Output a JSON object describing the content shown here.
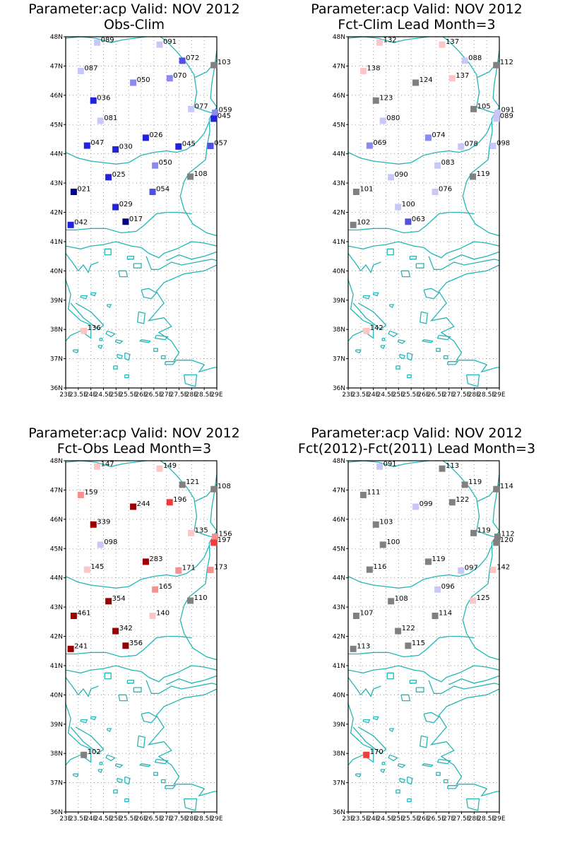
{
  "lat_ticks": [
    "48N",
    "47N",
    "46N",
    "45N",
    "44N",
    "43N",
    "42N",
    "41N",
    "40N",
    "39N",
    "38N",
    "37N",
    "36N"
  ],
  "lon_ticks": [
    "23E",
    "23.5E",
    "24E",
    "24.5E",
    "25E",
    "25.5E",
    "26E",
    "26.5E",
    "27E",
    "27.5E",
    "28E",
    "28.5E",
    "29E"
  ],
  "colors": {
    "coast": "#22b7b7",
    "frame": "#000000",
    "grid": "#888888",
    "neutral": "#808080",
    "blue_5": "#00008b",
    "blue_4": "#2222d8",
    "blue_3": "#5050e6",
    "blue_2": "#8a8aef",
    "blue_1": "#c8c8f8",
    "red_1": "#fcc6c6",
    "red_2": "#f59090",
    "red_3": "#ef3c3c",
    "red_4": "#990000"
  },
  "panels": [
    {
      "title_line1": "Parameter:acp Valid: NOV 2012",
      "title_line2": "Obs-Clim",
      "stations": [
        {
          "lat": 47.8,
          "lon": 24.25,
          "label": "089",
          "color": "blue_1"
        },
        {
          "lat": 47.73,
          "lon": 26.73,
          "label": "091",
          "color": "blue_1"
        },
        {
          "lat": 47.18,
          "lon": 27.63,
          "label": "072",
          "color": "blue_3"
        },
        {
          "lat": 47.03,
          "lon": 28.88,
          "label": "103",
          "color": "neutral"
        },
        {
          "lat": 46.83,
          "lon": 23.6,
          "label": "087",
          "color": "blue_1"
        },
        {
          "lat": 46.58,
          "lon": 27.13,
          "label": "070",
          "color": "blue_2"
        },
        {
          "lat": 46.43,
          "lon": 25.68,
          "label": "050",
          "color": "blue_2"
        },
        {
          "lat": 45.82,
          "lon": 24.1,
          "label": "036",
          "color": "blue_4"
        },
        {
          "lat": 45.53,
          "lon": 27.98,
          "label": "077",
          "color": "blue_1"
        },
        {
          "lat": 45.4,
          "lon": 28.93,
          "label": "059",
          "color": "blue_2"
        },
        {
          "lat": 45.2,
          "lon": 28.88,
          "label": "045",
          "color": "blue_4"
        },
        {
          "lat": 45.13,
          "lon": 24.38,
          "label": "081",
          "color": "blue_1"
        },
        {
          "lat": 44.55,
          "lon": 26.18,
          "label": "026",
          "color": "blue_4"
        },
        {
          "lat": 44.28,
          "lon": 23.85,
          "label": "047",
          "color": "blue_4"
        },
        {
          "lat": 44.25,
          "lon": 27.48,
          "label": "045",
          "color": "blue_4"
        },
        {
          "lat": 44.27,
          "lon": 28.75,
          "label": "057",
          "color": "blue_3"
        },
        {
          "lat": 44.15,
          "lon": 24.98,
          "label": "030",
          "color": "blue_4"
        },
        {
          "lat": 43.6,
          "lon": 26.55,
          "label": "050",
          "color": "blue_2"
        },
        {
          "lat": 43.22,
          "lon": 27.95,
          "label": "108",
          "color": "neutral"
        },
        {
          "lat": 43.2,
          "lon": 24.7,
          "label": "025",
          "color": "blue_4"
        },
        {
          "lat": 42.7,
          "lon": 23.32,
          "label": "021",
          "color": "blue_5"
        },
        {
          "lat": 42.7,
          "lon": 26.45,
          "label": "054",
          "color": "blue_3"
        },
        {
          "lat": 42.18,
          "lon": 24.98,
          "label": "029",
          "color": "blue_4"
        },
        {
          "lat": 41.68,
          "lon": 25.38,
          "label": "017",
          "color": "blue_5"
        },
        {
          "lat": 41.57,
          "lon": 23.2,
          "label": "042",
          "color": "blue_4"
        },
        {
          "lat": 37.95,
          "lon": 23.72,
          "label": "136",
          "color": "red_1"
        }
      ]
    },
    {
      "title_line1": "Parameter:acp Valid: NOV 2012",
      "title_line2": "Fct-Clim Lead Month=3",
      "stations": [
        {
          "lat": 47.8,
          "lon": 24.25,
          "label": "132",
          "color": "red_1"
        },
        {
          "lat": 47.73,
          "lon": 26.73,
          "label": "137",
          "color": "red_1"
        },
        {
          "lat": 47.18,
          "lon": 27.63,
          "label": "088",
          "color": "blue_1"
        },
        {
          "lat": 47.03,
          "lon": 28.88,
          "label": "112",
          "color": "neutral"
        },
        {
          "lat": 46.83,
          "lon": 23.6,
          "label": "138",
          "color": "red_1"
        },
        {
          "lat": 46.58,
          "lon": 27.13,
          "label": "137",
          "color": "red_1"
        },
        {
          "lat": 46.43,
          "lon": 25.68,
          "label": "124",
          "color": "neutral"
        },
        {
          "lat": 45.82,
          "lon": 24.1,
          "label": "123",
          "color": "neutral"
        },
        {
          "lat": 45.53,
          "lon": 27.98,
          "label": "105",
          "color": "neutral"
        },
        {
          "lat": 45.4,
          "lon": 28.93,
          "label": "091",
          "color": "blue_1"
        },
        {
          "lat": 45.2,
          "lon": 28.88,
          "label": "089",
          "color": "blue_1"
        },
        {
          "lat": 45.13,
          "lon": 24.38,
          "label": "080",
          "color": "blue_1"
        },
        {
          "lat": 44.55,
          "lon": 26.18,
          "label": "074",
          "color": "blue_2"
        },
        {
          "lat": 44.28,
          "lon": 23.85,
          "label": "069",
          "color": "blue_2"
        },
        {
          "lat": 44.25,
          "lon": 27.48,
          "label": "078",
          "color": "blue_1"
        },
        {
          "lat": 44.27,
          "lon": 28.75,
          "label": "098",
          "color": "blue_1"
        },
        {
          "lat": 43.6,
          "lon": 26.55,
          "label": "083",
          "color": "blue_1"
        },
        {
          "lat": 43.22,
          "lon": 27.95,
          "label": "119",
          "color": "neutral"
        },
        {
          "lat": 43.2,
          "lon": 24.7,
          "label": "090",
          "color": "blue_1"
        },
        {
          "lat": 42.7,
          "lon": 23.32,
          "label": "101",
          "color": "neutral"
        },
        {
          "lat": 42.7,
          "lon": 26.45,
          "label": "076",
          "color": "blue_1"
        },
        {
          "lat": 42.18,
          "lon": 24.98,
          "label": "100",
          "color": "blue_1"
        },
        {
          "lat": 41.68,
          "lon": 25.38,
          "label": "063",
          "color": "blue_3"
        },
        {
          "lat": 41.57,
          "lon": 23.2,
          "label": "102",
          "color": "neutral"
        },
        {
          "lat": 37.95,
          "lon": 23.72,
          "label": "142",
          "color": "red_1"
        }
      ]
    },
    {
      "title_line1": "Parameter:acp Valid: NOV 2012",
      "title_line2": "Fct-Obs Lead Month=3",
      "stations": [
        {
          "lat": 47.8,
          "lon": 24.25,
          "label": "147",
          "color": "red_1"
        },
        {
          "lat": 47.73,
          "lon": 26.73,
          "label": "149",
          "color": "red_1"
        },
        {
          "lat": 47.18,
          "lon": 27.63,
          "label": "121",
          "color": "neutral"
        },
        {
          "lat": 47.03,
          "lon": 28.88,
          "label": "108",
          "color": "neutral"
        },
        {
          "lat": 46.83,
          "lon": 23.6,
          "label": "159",
          "color": "red_2"
        },
        {
          "lat": 46.58,
          "lon": 27.13,
          "label": "196",
          "color": "red_3"
        },
        {
          "lat": 46.43,
          "lon": 25.68,
          "label": "244",
          "color": "red_4"
        },
        {
          "lat": 45.82,
          "lon": 24.1,
          "label": "339",
          "color": "red_4"
        },
        {
          "lat": 45.53,
          "lon": 27.98,
          "label": "135",
          "color": "red_1"
        },
        {
          "lat": 45.4,
          "lon": 28.93,
          "label": "156",
          "color": "red_2"
        },
        {
          "lat": 45.2,
          "lon": 28.88,
          "label": "197",
          "color": "red_3"
        },
        {
          "lat": 45.13,
          "lon": 24.38,
          "label": "098",
          "color": "blue_1"
        },
        {
          "lat": 44.55,
          "lon": 26.18,
          "label": "283",
          "color": "red_4"
        },
        {
          "lat": 44.28,
          "lon": 23.85,
          "label": "145",
          "color": "red_1"
        },
        {
          "lat": 44.25,
          "lon": 27.48,
          "label": "171",
          "color": "red_2"
        },
        {
          "lat": 44.27,
          "lon": 28.75,
          "label": "173",
          "color": "red_2"
        },
        {
          "lat": 43.6,
          "lon": 26.55,
          "label": "165",
          "color": "red_2"
        },
        {
          "lat": 43.22,
          "lon": 27.95,
          "label": "110",
          "color": "neutral"
        },
        {
          "lat": 43.2,
          "lon": 24.7,
          "label": "354",
          "color": "red_4"
        },
        {
          "lat": 42.7,
          "lon": 23.32,
          "label": "461",
          "color": "red_4"
        },
        {
          "lat": 42.7,
          "lon": 26.45,
          "label": "140",
          "color": "red_1"
        },
        {
          "lat": 42.18,
          "lon": 24.98,
          "label": "342",
          "color": "red_4"
        },
        {
          "lat": 41.68,
          "lon": 25.38,
          "label": "356",
          "color": "red_4"
        },
        {
          "lat": 41.57,
          "lon": 23.2,
          "label": "241",
          "color": "red_4"
        },
        {
          "lat": 37.95,
          "lon": 23.72,
          "label": "102",
          "color": "neutral"
        }
      ]
    },
    {
      "title_line1": "Parameter:acp Valid: NOV 2012",
      "title_line2": "Fct(2012)-Fct(2011) Lead Month=3",
      "stations": [
        {
          "lat": 47.8,
          "lon": 24.25,
          "label": "091",
          "color": "blue_1"
        },
        {
          "lat": 47.73,
          "lon": 26.73,
          "label": "113",
          "color": "neutral"
        },
        {
          "lat": 47.18,
          "lon": 27.63,
          "label": "119",
          "color": "neutral"
        },
        {
          "lat": 47.03,
          "lon": 28.88,
          "label": "114",
          "color": "neutral"
        },
        {
          "lat": 46.83,
          "lon": 23.6,
          "label": "111",
          "color": "neutral"
        },
        {
          "lat": 46.58,
          "lon": 27.13,
          "label": "122",
          "color": "neutral"
        },
        {
          "lat": 46.43,
          "lon": 25.68,
          "label": "099",
          "color": "blue_1"
        },
        {
          "lat": 45.82,
          "lon": 24.1,
          "label": "103",
          "color": "neutral"
        },
        {
          "lat": 45.53,
          "lon": 27.98,
          "label": "119",
          "color": "neutral"
        },
        {
          "lat": 45.4,
          "lon": 28.93,
          "label": "112",
          "color": "neutral"
        },
        {
          "lat": 45.2,
          "lon": 28.88,
          "label": "120",
          "color": "neutral"
        },
        {
          "lat": 45.13,
          "lon": 24.38,
          "label": "100",
          "color": "neutral"
        },
        {
          "lat": 44.55,
          "lon": 26.18,
          "label": "119",
          "color": "neutral"
        },
        {
          "lat": 44.28,
          "lon": 23.85,
          "label": "116",
          "color": "neutral"
        },
        {
          "lat": 44.25,
          "lon": 27.48,
          "label": "097",
          "color": "blue_1"
        },
        {
          "lat": 44.27,
          "lon": 28.75,
          "label": "142",
          "color": "red_1"
        },
        {
          "lat": 43.6,
          "lon": 26.55,
          "label": "096",
          "color": "blue_1"
        },
        {
          "lat": 43.22,
          "lon": 27.95,
          "label": "125",
          "color": "red_1"
        },
        {
          "lat": 43.2,
          "lon": 24.7,
          "label": "108",
          "color": "neutral"
        },
        {
          "lat": 42.7,
          "lon": 23.32,
          "label": "107",
          "color": "neutral"
        },
        {
          "lat": 42.7,
          "lon": 26.45,
          "label": "114",
          "color": "neutral"
        },
        {
          "lat": 42.18,
          "lon": 24.98,
          "label": "122",
          "color": "neutral"
        },
        {
          "lat": 41.68,
          "lon": 25.38,
          "label": "115",
          "color": "neutral"
        },
        {
          "lat": 41.57,
          "lon": 23.2,
          "label": "113",
          "color": "neutral"
        },
        {
          "lat": 37.95,
          "lon": 23.72,
          "label": "170",
          "color": "red_3"
        }
      ]
    }
  ]
}
